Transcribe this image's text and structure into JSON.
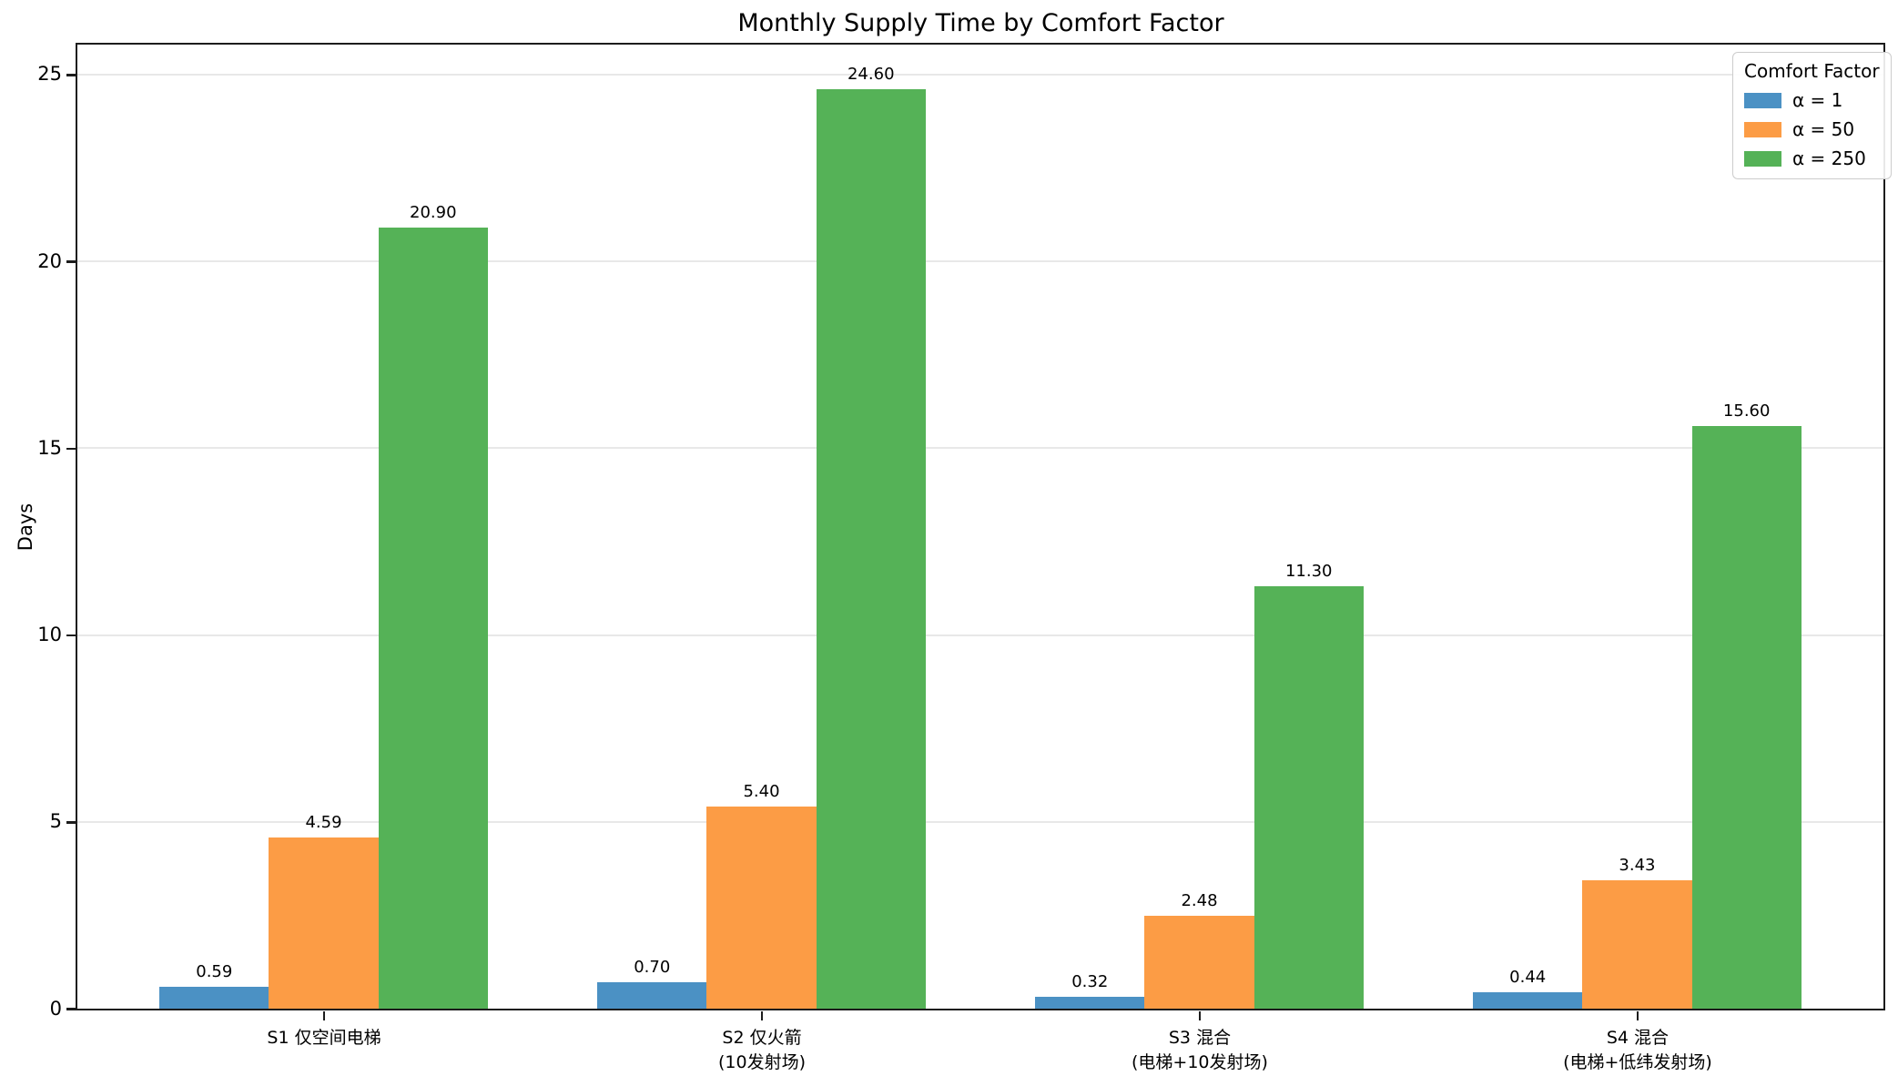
{
  "chart_data": {
    "type": "bar",
    "title": "Monthly Supply Time by Comfort Factor",
    "ylabel": "Days",
    "xlabel": "",
    "categories": [
      [
        "S1 仅空间电梯"
      ],
      [
        "S2 仅火箭",
        "(10发射场)"
      ],
      [
        "S3 混合",
        "(电梯+10发射场)"
      ],
      [
        "S4 混合",
        "(电梯+低纬发射场)"
      ]
    ],
    "series": [
      {
        "name": "α = 1",
        "color": "#4B91C4",
        "values": [
          0.59,
          0.7,
          0.32,
          0.44
        ],
        "value_labels": [
          "0.59",
          "0.70",
          "0.32",
          "0.44"
        ]
      },
      {
        "name": "α = 50",
        "color": "#FC9C45",
        "values": [
          4.59,
          5.4,
          2.48,
          3.43
        ],
        "value_labels": [
          "4.59",
          "5.40",
          "2.48",
          "3.43"
        ]
      },
      {
        "name": "α = 250",
        "color": "#55B257",
        "values": [
          20.9,
          24.6,
          11.3,
          15.6
        ],
        "value_labels": [
          "20.90",
          "24.60",
          "11.30",
          "15.60"
        ]
      }
    ],
    "yticks": [
      0,
      5,
      10,
      15,
      20,
      25
    ],
    "ytick_labels": [
      "0",
      "5",
      "10",
      "15",
      "20",
      "25"
    ],
    "ylim": [
      0,
      25.8
    ],
    "xlim": [
      -0.5625,
      3.5625
    ],
    "bar_width": 0.25,
    "grid": true,
    "legend": {
      "title": "Comfort Factor",
      "position": "upper right"
    },
    "colors": {
      "grid": "#E8E8E8",
      "spine": "#1C1C1C",
      "legend_border": "#CCCCCC",
      "background": "#FFFFFF"
    }
  }
}
